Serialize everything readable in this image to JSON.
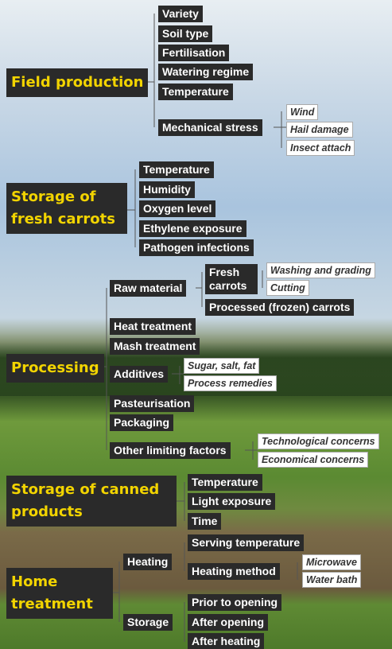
{
  "sections": [
    {
      "label": "Field production",
      "items": [
        {
          "label": "Variety"
        },
        {
          "label": "Soil type"
        },
        {
          "label": "Fertilisation"
        },
        {
          "label": "Watering regime"
        },
        {
          "label": "Temperature"
        },
        {
          "label": "Mechanical stress",
          "details": [
            "Wind",
            "Hail damage",
            "Insect attach"
          ]
        }
      ]
    },
    {
      "label": "Storage of fresh carrots",
      "items": [
        {
          "label": "Temperature"
        },
        {
          "label": "Humidity"
        },
        {
          "label": "Oxygen level"
        },
        {
          "label": "Ethylene exposure"
        },
        {
          "label": "Pathogen infections"
        }
      ]
    },
    {
      "label": "Processing",
      "items": [
        {
          "label": "Raw material",
          "items": [
            {
              "label": "Fresh carrots",
              "details": [
                "Washing and grading",
                "Cutting"
              ]
            },
            {
              "label": "Processed (frozen) carrots"
            }
          ]
        },
        {
          "label": "Heat treatment"
        },
        {
          "label": "Mash treatment"
        },
        {
          "label": "Additives",
          "details": [
            "Sugar, salt, fat",
            "Process remedies"
          ]
        },
        {
          "label": "Pasteurisation"
        },
        {
          "label": "Packaging"
        },
        {
          "label": "Other limiting factors",
          "details": [
            "Technological concerns",
            "Economical concerns"
          ]
        }
      ]
    },
    {
      "label": "Storage of canned products",
      "items": [
        {
          "label": "Temperature"
        },
        {
          "label": "Light exposure"
        },
        {
          "label": "Time"
        }
      ]
    },
    {
      "label": "Home treatment",
      "items": [
        {
          "label": "Heating",
          "items": [
            {
              "label": "Serving temperature"
            },
            {
              "label": "Heating method",
              "details": [
                "Microwave",
                "Water bath"
              ]
            }
          ]
        },
        {
          "label": "Storage",
          "items": [
            {
              "label": "Prior to opening"
            },
            {
              "label": "After opening"
            },
            {
              "label": "After heating"
            }
          ]
        }
      ]
    }
  ]
}
